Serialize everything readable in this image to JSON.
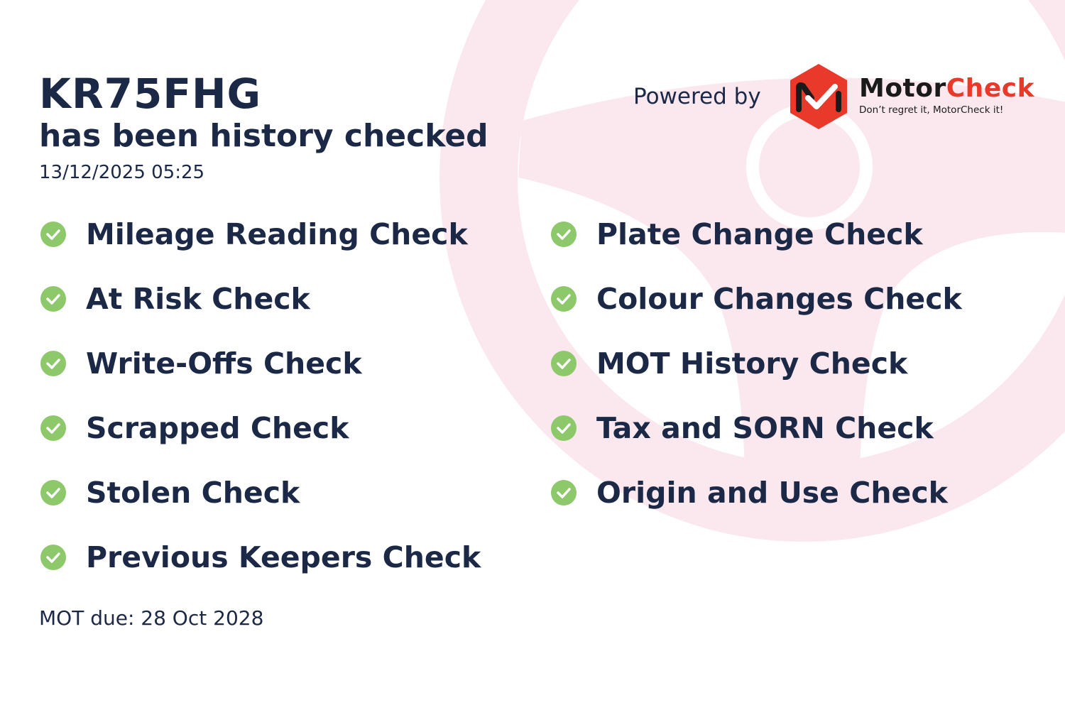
{
  "header": {
    "plate": "KR75FHG",
    "subtitle": "has been history checked",
    "timestamp": "13/12/2025 05:25"
  },
  "branding": {
    "powered_by": "Powered by",
    "brand_part1": "Motor",
    "brand_part2": "Check",
    "tagline": "Don’t regret it, MotorCheck it!",
    "logo_icon": "motorcheck-hexagon-logo",
    "brand_red": "#e8392b"
  },
  "checks_left": [
    {
      "label": "Mileage Reading Check",
      "status": "passed"
    },
    {
      "label": "At Risk Check",
      "status": "passed"
    },
    {
      "label": "Write-Offs Check",
      "status": "passed"
    },
    {
      "label": "Scrapped Check",
      "status": "passed"
    },
    {
      "label": "Stolen Check",
      "status": "passed"
    },
    {
      "label": "Previous Keepers Check",
      "status": "passed"
    }
  ],
  "checks_right": [
    {
      "label": "Plate Change Check",
      "status": "passed"
    },
    {
      "label": "Colour Changes Check",
      "status": "passed"
    },
    {
      "label": "MOT History Check",
      "status": "passed"
    },
    {
      "label": "Tax and SORN Check",
      "status": "passed"
    },
    {
      "label": "Origin and Use Check",
      "status": "passed"
    }
  ],
  "footer": {
    "mot_due": "MOT due: 28 Oct 2028"
  },
  "colors": {
    "text": "#1b2947",
    "check_green": "#8dc86b",
    "watermark": "#fbe8ee"
  }
}
